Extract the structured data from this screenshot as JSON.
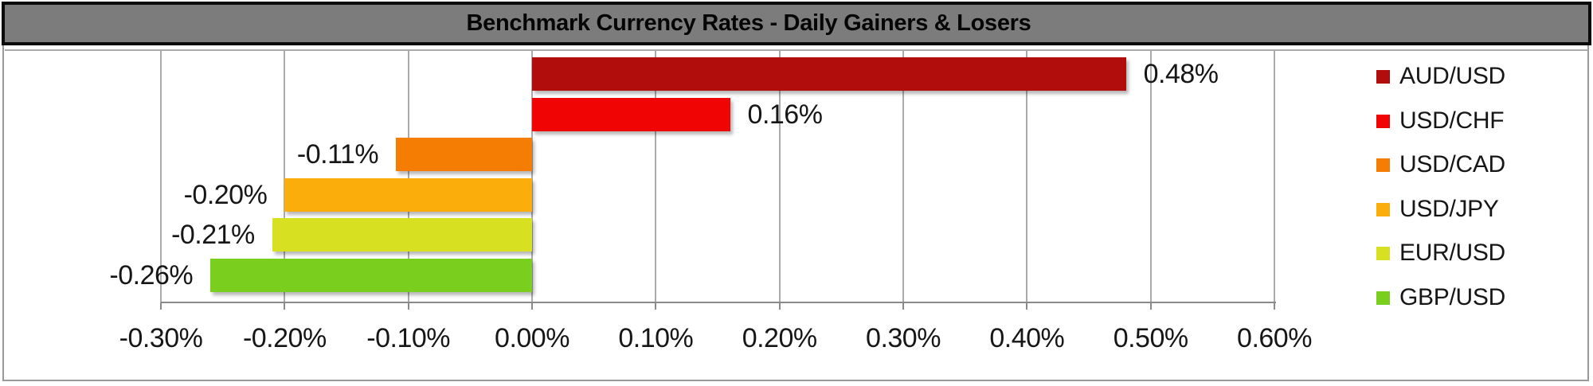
{
  "title": "Benchmark Currency Rates - Daily Gainers & Losers",
  "chart_data": {
    "type": "bar",
    "orientation": "horizontal",
    "title": "Benchmark Currency Rates - Daily Gainers & Losers",
    "series": [
      {
        "name": "AUD/USD",
        "value": 0.48,
        "label": "0.48%",
        "color": "#b20d0d"
      },
      {
        "name": "USD/CHF",
        "value": 0.16,
        "label": "0.16%",
        "color": "#f00404"
      },
      {
        "name": "USD/CAD",
        "value": -0.11,
        "label": "-0.11%",
        "color": "#f67d03"
      },
      {
        "name": "USD/JPY",
        "value": -0.2,
        "label": "-0.20%",
        "color": "#fbae0b"
      },
      {
        "name": "EUR/USD",
        "value": -0.21,
        "label": "-0.21%",
        "color": "#d7e021"
      },
      {
        "name": "GBP/USD",
        "value": -0.26,
        "label": "-0.26%",
        "color": "#7acf1e"
      }
    ],
    "x_axis": {
      "min": -0.3,
      "max": 0.6,
      "step": 0.1,
      "tick_labels": [
        "-0.30%",
        "-0.20%",
        "-0.10%",
        "0.00%",
        "0.10%",
        "0.20%",
        "0.30%",
        "0.40%",
        "0.50%",
        "0.60%"
      ]
    },
    "grid": true,
    "legend_position": "right"
  },
  "colors": {
    "title_bar_fill": "#7c7c7c",
    "title_bar_border": "#0a0a0a",
    "gridline": "#ababab",
    "axis_line": "#8a8a8a",
    "background": "#ffffff",
    "text": "#161616"
  }
}
